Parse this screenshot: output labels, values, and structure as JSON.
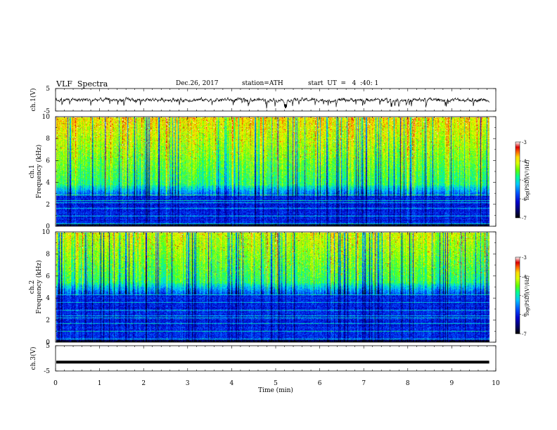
{
  "header": {
    "title": "VLF  Spectra",
    "date": "Dec.26, 2017",
    "station": "station=ATH",
    "start": "start  UT  =   4  :40: 1"
  },
  "colors": {
    "spectrum": [
      "#000000",
      "#00005a",
      "#0000c8",
      "#0050ff",
      "#00c8ff",
      "#00ff96",
      "#64ff00",
      "#dcff00",
      "#ffdc00",
      "#ff6400",
      "#dc0000",
      "#ffffff"
    ],
    "trace": "#000000"
  },
  "chart_data": [
    {
      "type": "line",
      "name": "ch1-waveform",
      "ylabel": "ch.1(V)",
      "ylim": [
        -5,
        5
      ],
      "yticks": [
        "5",
        "-5"
      ],
      "description_level_mean": 0
    },
    {
      "type": "heatmap",
      "name": "ch1-spectrogram",
      "ylabel": "Frequency (kHz)",
      "channel_label": "ch.1",
      "ylim": [
        0,
        10
      ],
      "yticks": [
        "0",
        "2",
        "4",
        "6",
        "8",
        "10"
      ],
      "colorbar": {
        "label": "log(PSD)(V²/Hz)",
        "range": [
          -7,
          -3
        ],
        "ticks": [
          "-3",
          "-4",
          "-5",
          "-6",
          "-7"
        ]
      }
    },
    {
      "type": "heatmap",
      "name": "ch2-spectrogram",
      "ylabel": "Frequency (kHz)",
      "channel_label": "ch.2",
      "ylim": [
        0,
        10
      ],
      "yticks": [
        "0",
        "2",
        "4",
        "6",
        "8",
        "10"
      ],
      "colorbar": {
        "label": "log(PSD)(V²/Hz)",
        "range": [
          -7,
          -3
        ],
        "ticks": [
          "-3",
          "-4",
          "-5",
          "-6",
          "-7"
        ]
      }
    },
    {
      "type": "line",
      "name": "ch3-waveform",
      "ylabel": "ch.3(V)",
      "ylim": [
        -5,
        5
      ],
      "yticks": [
        "5",
        "-5"
      ],
      "level": -1.5
    }
  ],
  "x_axis": {
    "label": "Time  (min)",
    "range": [
      0,
      10
    ],
    "data_end": 9.85,
    "ticks": [
      "0",
      "1",
      "2",
      "3",
      "4",
      "5",
      "6",
      "7",
      "8",
      "9",
      "10"
    ]
  }
}
